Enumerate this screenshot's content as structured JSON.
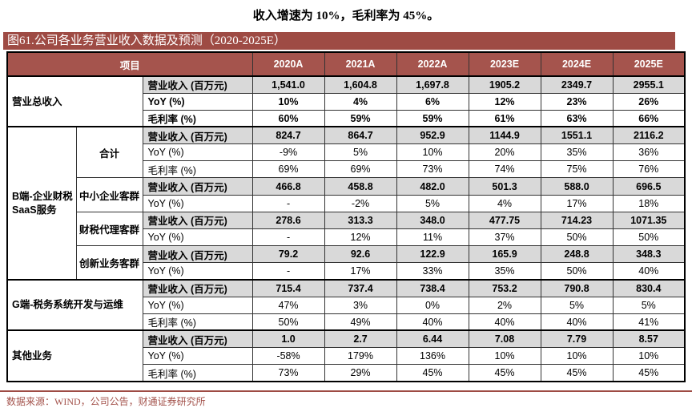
{
  "page": {
    "top_text": "收入增速为 10%，毛利率为 45%。",
    "figure_title": "图61.公司各业务营业收入数据及预测（2020-2025E）",
    "source_note": "数据来源：WIND，公司公告，财通证券研究所"
  },
  "colors": {
    "title_bar": "#9E4B44",
    "table_header": "#A5544D",
    "shaded_row": "#D9D9D9",
    "source_text": "#A3524B"
  },
  "table": {
    "corner_label": "项目",
    "years": [
      "2020A",
      "2021A",
      "2022A",
      "2023E",
      "2024E",
      "2025E"
    ],
    "sections": [
      {
        "group": "营业总收入",
        "subgroups": [
          {
            "label": "",
            "rows": [
              {
                "metric": "营业收入 (百万元)",
                "bold": true,
                "shaded": true,
                "values": [
                  "1,541.0",
                  "1,604.8",
                  "1,697.8",
                  "1905.2",
                  "2349.7",
                  "2955.1"
                ]
              },
              {
                "metric": "YoY (%)",
                "bold": true,
                "shaded": false,
                "values": [
                  "10%",
                  "4%",
                  "6%",
                  "12%",
                  "23%",
                  "26%"
                ]
              },
              {
                "metric": "毛利率 (%)",
                "bold": true,
                "shaded": false,
                "values": [
                  "60%",
                  "59%",
                  "59%",
                  "61%",
                  "63%",
                  "66%"
                ]
              }
            ]
          }
        ]
      },
      {
        "group": "B端-企业财税SaaS服务",
        "subgroups": [
          {
            "label": "合计",
            "rows": [
              {
                "metric": "营业收入 (百万元)",
                "bold": true,
                "shaded": true,
                "values": [
                  "824.7",
                  "864.7",
                  "952.9",
                  "1144.9",
                  "1551.1",
                  "2116.2"
                ]
              },
              {
                "metric": "YoY (%)",
                "bold": false,
                "shaded": false,
                "values": [
                  "-9%",
                  "5%",
                  "10%",
                  "20%",
                  "35%",
                  "36%"
                ]
              },
              {
                "metric": "毛利率 (%)",
                "bold": false,
                "shaded": false,
                "values": [
                  "69%",
                  "69%",
                  "73%",
                  "74%",
                  "75%",
                  "76%"
                ]
              }
            ]
          },
          {
            "label": "中小企业客群",
            "rows": [
              {
                "metric": "营业收入 (百万元)",
                "bold": true,
                "shaded": true,
                "values": [
                  "466.8",
                  "458.8",
                  "482.0",
                  "501.3",
                  "588.0",
                  "696.5"
                ]
              },
              {
                "metric": "YoY (%)",
                "bold": false,
                "shaded": false,
                "values": [
                  "-",
                  "-2%",
                  "5%",
                  "4%",
                  "17%",
                  "18%"
                ]
              }
            ]
          },
          {
            "label": "财税代理客群",
            "rows": [
              {
                "metric": "营业收入 (百万元)",
                "bold": true,
                "shaded": true,
                "values": [
                  "278.6",
                  "313.3",
                  "348.0",
                  "477.75",
                  "714.23",
                  "1071.35"
                ]
              },
              {
                "metric": "YoY (%)",
                "bold": false,
                "shaded": false,
                "values": [
                  "-",
                  "12%",
                  "11%",
                  "37%",
                  "50%",
                  "50%"
                ]
              }
            ]
          },
          {
            "label": "创新业务客群",
            "rows": [
              {
                "metric": "营业收入 (百万元)",
                "bold": true,
                "shaded": true,
                "values": [
                  "79.2",
                  "92.6",
                  "122.9",
                  "165.9",
                  "248.8",
                  "348.3"
                ]
              },
              {
                "metric": "YoY (%)",
                "bold": false,
                "shaded": false,
                "values": [
                  "-",
                  "17%",
                  "33%",
                  "35%",
                  "50%",
                  "40%"
                ]
              }
            ]
          }
        ]
      },
      {
        "group": "G端-税务系统开发与运维",
        "subgroups": [
          {
            "label": "",
            "rows": [
              {
                "metric": "营业收入 (百万元)",
                "bold": true,
                "shaded": true,
                "values": [
                  "715.4",
                  "737.4",
                  "738.4",
                  "753.2",
                  "790.8",
                  "830.4"
                ]
              },
              {
                "metric": "YoY (%)",
                "bold": false,
                "shaded": false,
                "values": [
                  "47%",
                  "3%",
                  "0%",
                  "2%",
                  "5%",
                  "5%"
                ]
              },
              {
                "metric": "毛利率 (%)",
                "bold": false,
                "shaded": false,
                "values": [
                  "50%",
                  "49%",
                  "40%",
                  "40%",
                  "40%",
                  "41%"
                ]
              }
            ]
          }
        ]
      },
      {
        "group": "其他业务",
        "subgroups": [
          {
            "label": "",
            "rows": [
              {
                "metric": "营业收入 (百万元)",
                "bold": true,
                "shaded": true,
                "values": [
                  "1.0",
                  "2.7",
                  "6.44",
                  "7.08",
                  "7.79",
                  "8.57"
                ]
              },
              {
                "metric": "YoY (%)",
                "bold": false,
                "shaded": false,
                "values": [
                  "-58%",
                  "179%",
                  "136%",
                  "10%",
                  "10%",
                  "10%"
                ]
              },
              {
                "metric": "毛利率 (%)",
                "bold": false,
                "shaded": false,
                "values": [
                  "73%",
                  "29%",
                  "45%",
                  "45%",
                  "45%",
                  "45%"
                ]
              }
            ]
          }
        ]
      }
    ]
  }
}
